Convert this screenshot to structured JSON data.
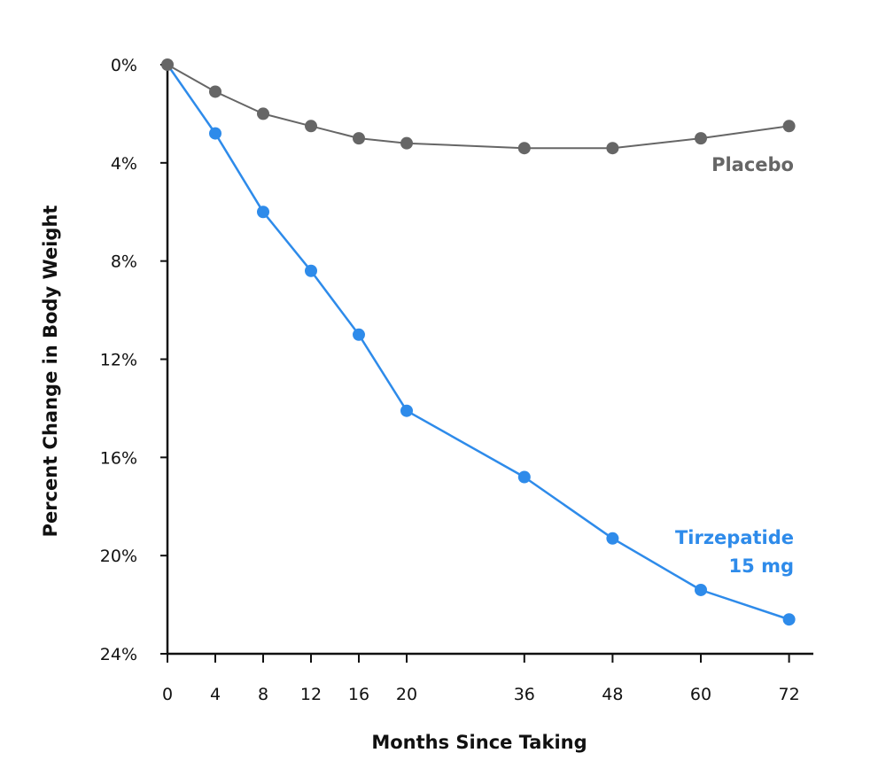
{
  "chart_data": {
    "type": "line",
    "title": "",
    "xlabel": "Months Since Taking",
    "ylabel": "Percent Change in Body Weight",
    "x_ticks": [
      "0",
      "4",
      "8",
      "12",
      "16",
      "20",
      "36",
      "48",
      "60",
      "72"
    ],
    "y_ticks": [
      "0%",
      "4%",
      "8%",
      "12%",
      "16%",
      "20%",
      "24%"
    ],
    "ylim": [
      0,
      24
    ],
    "y_inverted": true,
    "grid": false,
    "series": [
      {
        "name": "Placebo",
        "label": "Placebo",
        "color": "#666666",
        "points": [
          {
            "x": 0,
            "y": 0.0
          },
          {
            "x": 4,
            "y": 1.1
          },
          {
            "x": 8,
            "y": 2.0
          },
          {
            "x": 12,
            "y": 2.5
          },
          {
            "x": 16,
            "y": 3.0
          },
          {
            "x": 20,
            "y": 3.2
          },
          {
            "x": 36,
            "y": 3.4
          },
          {
            "x": 48,
            "y": 3.4
          },
          {
            "x": 60,
            "y": 3.0
          },
          {
            "x": 72,
            "y": 2.5
          }
        ]
      },
      {
        "name": "Tirzepatide 15 mg",
        "label_lines": [
          "Tirzepatide",
          "15 mg"
        ],
        "color": "#2E8BEA",
        "points": [
          {
            "x": 4,
            "y": 2.8
          },
          {
            "x": 8,
            "y": 6.0
          },
          {
            "x": 12,
            "y": 8.4
          },
          {
            "x": 16,
            "y": 11.0
          },
          {
            "x": 20,
            "y": 14.1
          },
          {
            "x": 36,
            "y": 16.8
          },
          {
            "x": 48,
            "y": 19.3
          },
          {
            "x": 60,
            "y": 21.4
          },
          {
            "x": 72,
            "y": 22.6
          }
        ]
      }
    ]
  }
}
